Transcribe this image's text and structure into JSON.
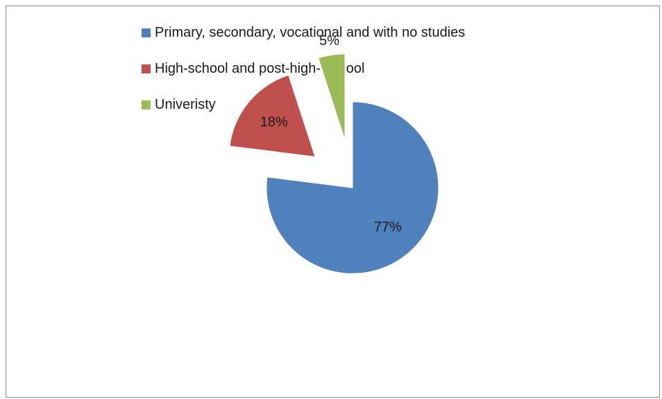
{
  "chart_data": {
    "type": "pie",
    "exploded": true,
    "legend_position": "top",
    "categories": [
      "Primary, secondary, vocational and with no studies",
      "High-school and post-high- school",
      "Univeristy"
    ],
    "values": [
      77,
      18,
      5
    ],
    "data_labels": [
      "77%",
      "18%",
      "5%"
    ],
    "colors": [
      "#4F81BD",
      "#C0504D",
      "#9BBB59"
    ]
  }
}
